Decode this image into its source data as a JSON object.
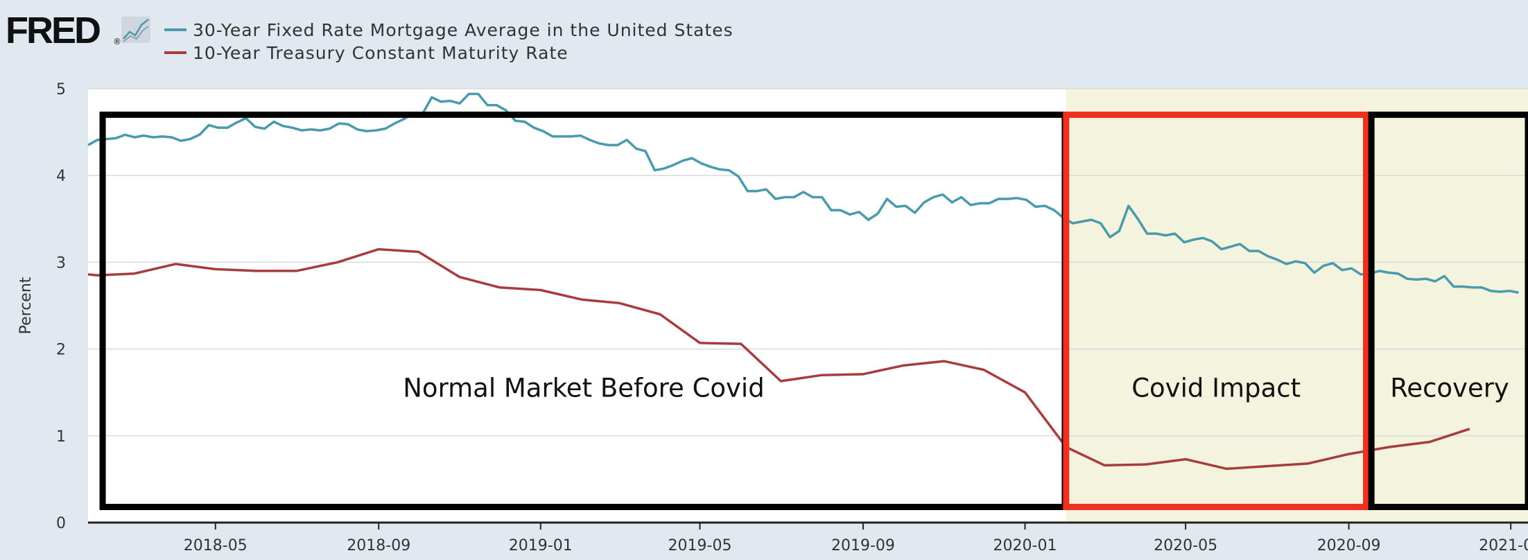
{
  "header": {
    "brand": "FRED",
    "brand_mark": "®",
    "logo_icon": "line-chart-icon"
  },
  "colors": {
    "page_bg": "#e1e9f0",
    "plot_bg": "#ffffff",
    "shade_bg": "#f3f3de",
    "mortgage": "#4a9aac",
    "treasury": "#a83c3c",
    "grid": "#dadada",
    "axis": "#222222",
    "box_black": "#000000",
    "box_red": "#f0301f"
  },
  "chart_data": {
    "type": "line",
    "title": "",
    "xlabel": "",
    "ylabel": "Percent",
    "ylim": [
      0,
      5
    ],
    "yticks": [
      0,
      1,
      2,
      3,
      4,
      5
    ],
    "xlim": [
      "2018-01-25",
      "2021-01-14"
    ],
    "xtick_dates": [
      "2018-05-01",
      "2018-09-01",
      "2019-01-01",
      "2019-05-01",
      "2019-09-01",
      "2020-01-01",
      "2020-05-01",
      "2020-09-01",
      "2021-01-01"
    ],
    "xtick_labels": [
      "2018-05",
      "2018-09",
      "2019-01",
      "2019-05",
      "2019-09",
      "2020-01",
      "2020-05",
      "2020-09",
      "2021-01"
    ],
    "grid": true,
    "legend_position": "top-left",
    "recession_shading": {
      "start": "2020-02-01",
      "end": "2021-01-14"
    },
    "series": [
      {
        "name": "30-Year Fixed Rate Mortgage Average in the United States",
        "frequency": "weekly",
        "points": [
          [
            "2018-01-25",
            4.35
          ],
          [
            "2018-02-01",
            4.41
          ],
          [
            "2018-02-08",
            4.42
          ],
          [
            "2018-02-15",
            4.43
          ],
          [
            "2018-02-22",
            4.47
          ],
          [
            "2018-03-01",
            4.44
          ],
          [
            "2018-03-08",
            4.46
          ],
          [
            "2018-03-15",
            4.44
          ],
          [
            "2018-03-22",
            4.45
          ],
          [
            "2018-03-29",
            4.44
          ],
          [
            "2018-04-05",
            4.4
          ],
          [
            "2018-04-12",
            4.42
          ],
          [
            "2018-04-19",
            4.47
          ],
          [
            "2018-04-26",
            4.58
          ],
          [
            "2018-05-03",
            4.55
          ],
          [
            "2018-05-10",
            4.55
          ],
          [
            "2018-05-17",
            4.61
          ],
          [
            "2018-05-24",
            4.66
          ],
          [
            "2018-05-31",
            4.56
          ],
          [
            "2018-06-07",
            4.54
          ],
          [
            "2018-06-14",
            4.62
          ],
          [
            "2018-06-21",
            4.57
          ],
          [
            "2018-06-28",
            4.55
          ],
          [
            "2018-07-05",
            4.52
          ],
          [
            "2018-07-12",
            4.53
          ],
          [
            "2018-07-19",
            4.52
          ],
          [
            "2018-07-26",
            4.54
          ],
          [
            "2018-08-02",
            4.6
          ],
          [
            "2018-08-09",
            4.59
          ],
          [
            "2018-08-16",
            4.53
          ],
          [
            "2018-08-23",
            4.51
          ],
          [
            "2018-08-30",
            4.52
          ],
          [
            "2018-09-06",
            4.54
          ],
          [
            "2018-09-13",
            4.6
          ],
          [
            "2018-09-20",
            4.65
          ],
          [
            "2018-09-27",
            4.72
          ],
          [
            "2018-10-04",
            4.71
          ],
          [
            "2018-10-11",
            4.9
          ],
          [
            "2018-10-18",
            4.85
          ],
          [
            "2018-10-25",
            4.86
          ],
          [
            "2018-11-01",
            4.83
          ],
          [
            "2018-11-08",
            4.94
          ],
          [
            "2018-11-15",
            4.94
          ],
          [
            "2018-11-22",
            4.81
          ],
          [
            "2018-11-29",
            4.81
          ],
          [
            "2018-12-06",
            4.75
          ],
          [
            "2018-12-13",
            4.63
          ],
          [
            "2018-12-20",
            4.62
          ],
          [
            "2018-12-27",
            4.55
          ],
          [
            "2019-01-03",
            4.51
          ],
          [
            "2019-01-10",
            4.45
          ],
          [
            "2019-01-17",
            4.45
          ],
          [
            "2019-01-24",
            4.45
          ],
          [
            "2019-01-31",
            4.46
          ],
          [
            "2019-02-07",
            4.41
          ],
          [
            "2019-02-14",
            4.37
          ],
          [
            "2019-02-21",
            4.35
          ],
          [
            "2019-02-28",
            4.35
          ],
          [
            "2019-03-07",
            4.41
          ],
          [
            "2019-03-14",
            4.31
          ],
          [
            "2019-03-21",
            4.28
          ],
          [
            "2019-03-28",
            4.06
          ],
          [
            "2019-04-04",
            4.08
          ],
          [
            "2019-04-11",
            4.12
          ],
          [
            "2019-04-18",
            4.17
          ],
          [
            "2019-04-25",
            4.2
          ],
          [
            "2019-05-02",
            4.14
          ],
          [
            "2019-05-09",
            4.1
          ],
          [
            "2019-05-16",
            4.07
          ],
          [
            "2019-05-23",
            4.06
          ],
          [
            "2019-05-30",
            3.99
          ],
          [
            "2019-06-06",
            3.82
          ],
          [
            "2019-06-13",
            3.82
          ],
          [
            "2019-06-20",
            3.84
          ],
          [
            "2019-06-27",
            3.73
          ],
          [
            "2019-07-04",
            3.75
          ],
          [
            "2019-07-11",
            3.75
          ],
          [
            "2019-07-18",
            3.81
          ],
          [
            "2019-07-25",
            3.75
          ],
          [
            "2019-08-01",
            3.75
          ],
          [
            "2019-08-08",
            3.6
          ],
          [
            "2019-08-15",
            3.6
          ],
          [
            "2019-08-22",
            3.55
          ],
          [
            "2019-08-29",
            3.58
          ],
          [
            "2019-09-05",
            3.49
          ],
          [
            "2019-09-12",
            3.56
          ],
          [
            "2019-09-19",
            3.73
          ],
          [
            "2019-09-26",
            3.64
          ],
          [
            "2019-10-03",
            3.65
          ],
          [
            "2019-10-10",
            3.57
          ],
          [
            "2019-10-17",
            3.69
          ],
          [
            "2019-10-24",
            3.75
          ],
          [
            "2019-10-31",
            3.78
          ],
          [
            "2019-11-07",
            3.69
          ],
          [
            "2019-11-14",
            3.75
          ],
          [
            "2019-11-21",
            3.66
          ],
          [
            "2019-11-28",
            3.68
          ],
          [
            "2019-12-05",
            3.68
          ],
          [
            "2019-12-12",
            3.73
          ],
          [
            "2019-12-19",
            3.73
          ],
          [
            "2019-12-26",
            3.74
          ],
          [
            "2020-01-02",
            3.72
          ],
          [
            "2020-01-09",
            3.64
          ],
          [
            "2020-01-16",
            3.65
          ],
          [
            "2020-01-23",
            3.6
          ],
          [
            "2020-01-30",
            3.51
          ],
          [
            "2020-02-06",
            3.45
          ],
          [
            "2020-02-13",
            3.47
          ],
          [
            "2020-02-20",
            3.49
          ],
          [
            "2020-02-27",
            3.45
          ],
          [
            "2020-03-05",
            3.29
          ],
          [
            "2020-03-12",
            3.36
          ],
          [
            "2020-03-19",
            3.65
          ],
          [
            "2020-03-26",
            3.5
          ],
          [
            "2020-04-02",
            3.33
          ],
          [
            "2020-04-09",
            3.33
          ],
          [
            "2020-04-16",
            3.31
          ],
          [
            "2020-04-23",
            3.33
          ],
          [
            "2020-04-30",
            3.23
          ],
          [
            "2020-05-07",
            3.26
          ],
          [
            "2020-05-14",
            3.28
          ],
          [
            "2020-05-21",
            3.24
          ],
          [
            "2020-05-28",
            3.15
          ],
          [
            "2020-06-04",
            3.18
          ],
          [
            "2020-06-11",
            3.21
          ],
          [
            "2020-06-18",
            3.13
          ],
          [
            "2020-06-25",
            3.13
          ],
          [
            "2020-07-02",
            3.07
          ],
          [
            "2020-07-09",
            3.03
          ],
          [
            "2020-07-16",
            2.98
          ],
          [
            "2020-07-23",
            3.01
          ],
          [
            "2020-07-30",
            2.99
          ],
          [
            "2020-08-06",
            2.88
          ],
          [
            "2020-08-13",
            2.96
          ],
          [
            "2020-08-20",
            2.99
          ],
          [
            "2020-08-27",
            2.91
          ],
          [
            "2020-09-03",
            2.93
          ],
          [
            "2020-09-10",
            2.86
          ],
          [
            "2020-09-17",
            2.87
          ],
          [
            "2020-09-24",
            2.9
          ],
          [
            "2020-10-01",
            2.88
          ],
          [
            "2020-10-08",
            2.87
          ],
          [
            "2020-10-15",
            2.81
          ],
          [
            "2020-10-22",
            2.8
          ],
          [
            "2020-10-29",
            2.81
          ],
          [
            "2020-11-05",
            2.78
          ],
          [
            "2020-11-12",
            2.84
          ],
          [
            "2020-11-19",
            2.72
          ],
          [
            "2020-11-26",
            2.72
          ],
          [
            "2020-12-03",
            2.71
          ],
          [
            "2020-12-10",
            2.71
          ],
          [
            "2020-12-17",
            2.67
          ],
          [
            "2020-12-24",
            2.66
          ],
          [
            "2020-12-31",
            2.67
          ],
          [
            "2021-01-07",
            2.65
          ]
        ]
      },
      {
        "name": "10-Year Treasury Constant Maturity Rate",
        "frequency": "monthly",
        "points": [
          [
            "2018-01-25",
            2.86
          ],
          [
            "2018-02-01",
            2.85
          ],
          [
            "2018-03-01",
            2.87
          ],
          [
            "2018-04-01",
            2.98
          ],
          [
            "2018-05-01",
            2.92
          ],
          [
            "2018-06-01",
            2.9
          ],
          [
            "2018-07-01",
            2.9
          ],
          [
            "2018-08-01",
            3.0
          ],
          [
            "2018-09-01",
            3.15
          ],
          [
            "2018-10-01",
            3.12
          ],
          [
            "2018-11-01",
            2.83
          ],
          [
            "2018-12-01",
            2.71
          ],
          [
            "2019-01-01",
            2.68
          ],
          [
            "2019-02-01",
            2.57
          ],
          [
            "2019-03-01",
            2.53
          ],
          [
            "2019-04-01",
            2.4
          ],
          [
            "2019-05-01",
            2.07
          ],
          [
            "2019-06-01",
            2.06
          ],
          [
            "2019-07-01",
            1.63
          ],
          [
            "2019-08-01",
            1.7
          ],
          [
            "2019-09-01",
            1.71
          ],
          [
            "2019-10-01",
            1.81
          ],
          [
            "2019-11-01",
            1.86
          ],
          [
            "2019-12-01",
            1.76
          ],
          [
            "2020-01-01",
            1.5
          ],
          [
            "2020-02-01",
            0.87
          ],
          [
            "2020-03-01",
            0.66
          ],
          [
            "2020-04-01",
            0.67
          ],
          [
            "2020-05-01",
            0.73
          ],
          [
            "2020-06-01",
            0.62
          ],
          [
            "2020-07-01",
            0.65
          ],
          [
            "2020-08-01",
            0.68
          ],
          [
            "2020-09-01",
            0.79
          ],
          [
            "2020-10-01",
            0.87
          ],
          [
            "2020-11-01",
            0.93
          ],
          [
            "2020-12-01",
            1.08
          ]
        ]
      }
    ],
    "annotations": [
      {
        "label": "Normal Market Before Covid",
        "start": "2018-02-05",
        "end": "2020-01-31",
        "ytop": 4.7,
        "ybottom": 0.18,
        "border": "black"
      },
      {
        "label": "Covid Impact",
        "start": "2020-02-01",
        "end": "2020-09-14",
        "ytop": 4.7,
        "ybottom": 0.18,
        "border": "red"
      },
      {
        "label": "Recovery",
        "start": "2020-09-18",
        "end": "2021-01-14",
        "ytop": 4.7,
        "ybottom": 0.18,
        "border": "black"
      }
    ]
  }
}
